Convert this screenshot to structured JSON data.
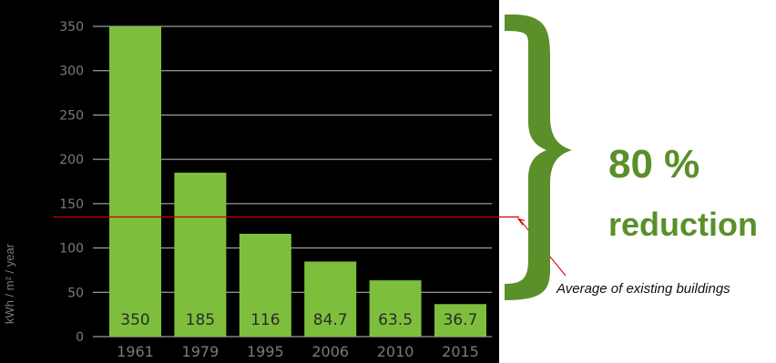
{
  "chart_data": {
    "type": "bar",
    "categories": [
      "1961",
      "1979",
      "1995",
      "2006",
      "2010",
      "2015"
    ],
    "values": [
      350,
      185,
      116,
      84.7,
      63.5,
      36.7
    ],
    "value_labels": [
      "350",
      "185",
      "116",
      "84.7",
      "63.5",
      "36.7"
    ],
    "title": "",
    "xlabel": "",
    "ylabel": "kWh / m² / year",
    "ylim": [
      0,
      350
    ],
    "yticks": [
      0,
      50,
      100,
      150,
      200,
      250,
      300,
      350
    ],
    "grid": true,
    "reference_line": {
      "value": 135,
      "label": "Average of existing buildings"
    },
    "colors": {
      "background": "#000000",
      "bar": "#7dbf3c",
      "grid": "#bfbfbf",
      "axis_text": "#7a7a7a",
      "bar_label": "#2b2b2b",
      "reference": "#cc0000"
    }
  },
  "callout": {
    "line1": "80 %",
    "line2": "reduction",
    "color": "#5a8f2a"
  }
}
